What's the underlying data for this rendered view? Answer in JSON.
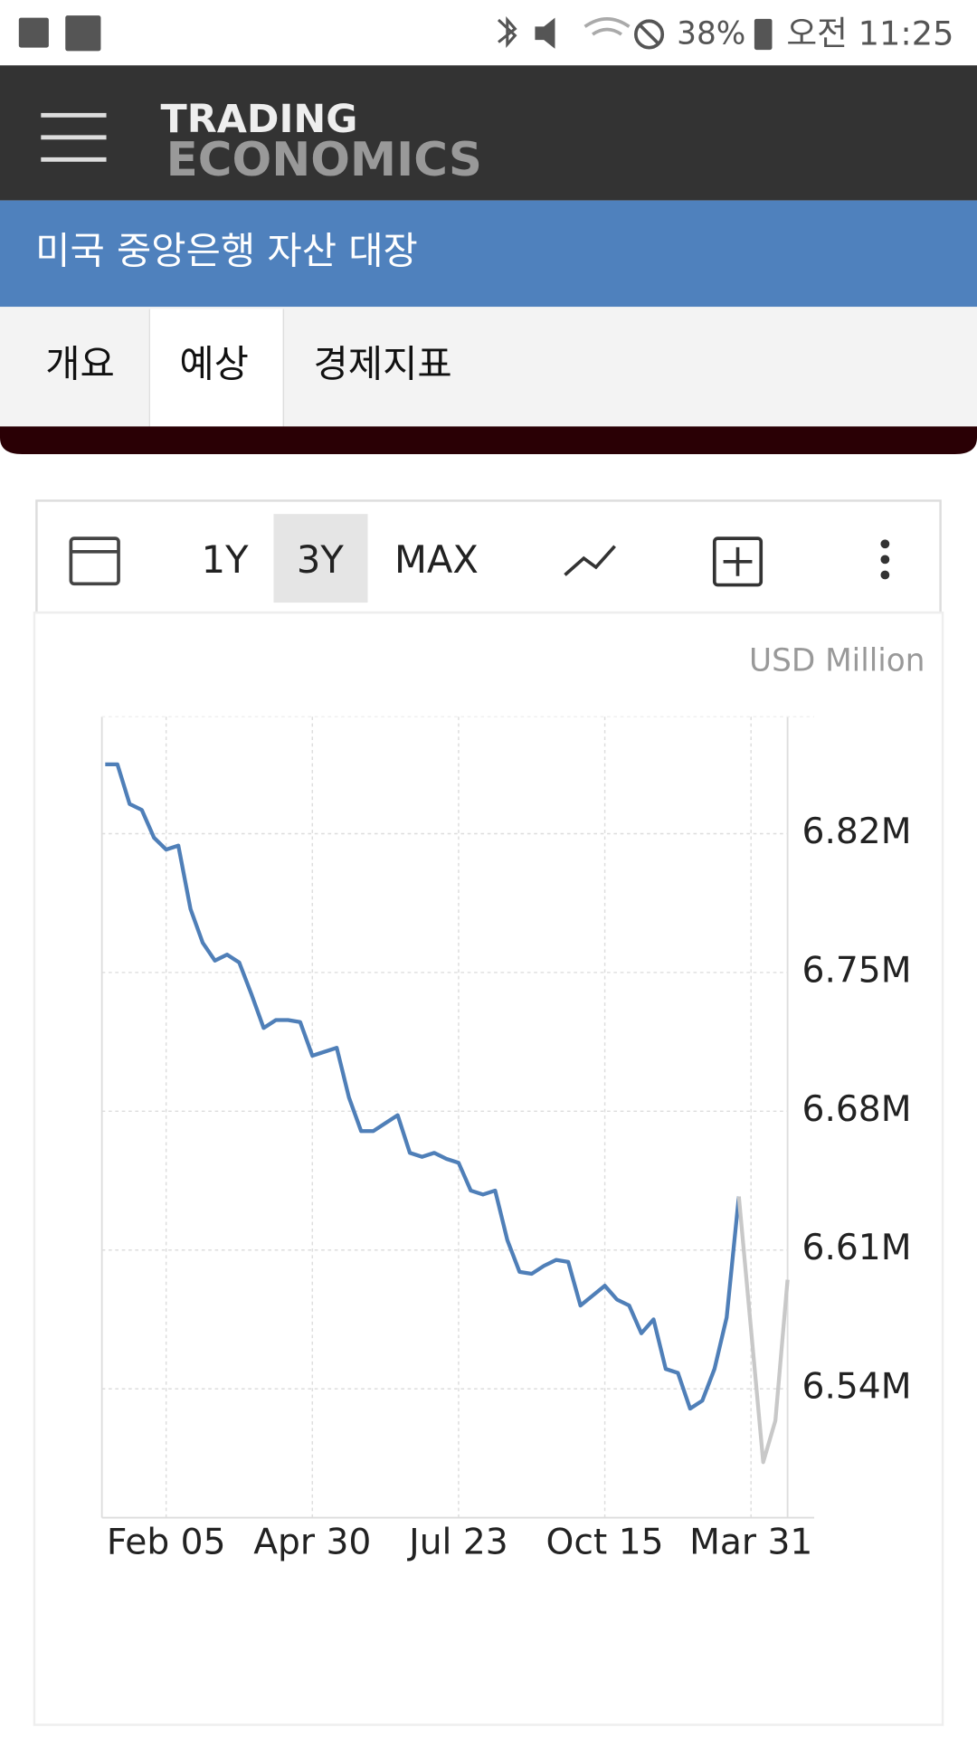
{
  "status_bar": {
    "battery": "38%",
    "time": "오전 11:25"
  },
  "header": {
    "logo_line1": "TRADING",
    "logo_line2": "ECONOMICS"
  },
  "page_title": "미국 중앙은행 자산 대장",
  "tabs": [
    "개요",
    "예상",
    "경제지표"
  ],
  "toolbar": {
    "ranges": [
      "1Y",
      "3Y",
      "MAX"
    ]
  },
  "chart_data": {
    "type": "line",
    "unit_label": "USD Million",
    "categories": [
      null,
      null,
      null,
      null,
      null,
      "Feb 05",
      null,
      null,
      null,
      null,
      null,
      null,
      null,
      null,
      null,
      null,
      null,
      "Apr 30",
      null,
      null,
      null,
      null,
      null,
      null,
      null,
      null,
      null,
      null,
      null,
      "Jul 23",
      null,
      null,
      null,
      null,
      null,
      null,
      null,
      null,
      null,
      null,
      null,
      "Oct 15",
      null,
      null,
      null,
      null,
      null,
      null,
      null,
      null,
      null,
      null,
      null,
      "Mar 31",
      null,
      null,
      null
    ],
    "series": [
      {
        "color": "#4f7fb8",
        "values": [
          6.855,
          6.855,
          6.835,
          6.832,
          6.818,
          6.812,
          6.814,
          6.782,
          6.765,
          6.756,
          6.759,
          6.755,
          6.739,
          6.722,
          6.726,
          6.726,
          6.725,
          6.708,
          6.71,
          6.712,
          6.687,
          6.67,
          6.67,
          6.674,
          6.678,
          6.659,
          6.657,
          6.659,
          6.656,
          6.654,
          6.64,
          6.638,
          6.64,
          6.615,
          6.599,
          6.598,
          6.602,
          6.605,
          6.604,
          6.582,
          6.587,
          6.592,
          6.585,
          6.582,
          6.568,
          6.575,
          6.55,
          6.548,
          6.53,
          6.534,
          6.55,
          6.576,
          6.637,
          null,
          null,
          null,
          null
        ]
      },
      {
        "color": "#c8c8c8",
        "values": [
          null,
          null,
          null,
          null,
          null,
          null,
          null,
          null,
          null,
          null,
          null,
          null,
          null,
          null,
          null,
          null,
          null,
          null,
          null,
          null,
          null,
          null,
          null,
          null,
          null,
          null,
          null,
          null,
          null,
          null,
          null,
          null,
          null,
          null,
          null,
          null,
          null,
          null,
          null,
          null,
          null,
          null,
          null,
          null,
          null,
          null,
          null,
          null,
          null,
          null,
          null,
          null,
          6.637,
          6.57,
          6.503,
          6.524,
          6.595
        ]
      }
    ],
    "ylim": [
      6.475,
      6.879
    ],
    "yticks": [
      {
        "value": 6.54,
        "label": "6.54M"
      },
      {
        "value": 6.61,
        "label": "6.61M"
      },
      {
        "value": 6.68,
        "label": "6.68M"
      },
      {
        "value": 6.75,
        "label": "6.75M"
      },
      {
        "value": 6.82,
        "label": "6.82M"
      }
    ],
    "grid": true
  }
}
